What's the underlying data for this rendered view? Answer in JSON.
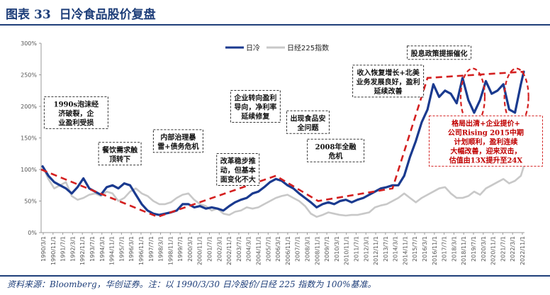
{
  "header": {
    "figure_label": "图表",
    "figure_number": "33",
    "title": "日冷食品股价复盘"
  },
  "source_note": "资料来源：Bloomberg，华创证券。注：以 1990/3/30 日冷股价/日经 225 指数为 100%基准。",
  "colors": {
    "nichirei": "#1a3a8f",
    "nikkei": "#c8c8c8",
    "trend": "#d42020",
    "title": "#1f3f7a"
  },
  "chart_data": {
    "type": "line",
    "ylim": [
      0,
      3
    ],
    "yticks": [
      "0%",
      "50%",
      "100%",
      "150%",
      "200%",
      "250%",
      "300%"
    ],
    "grid": false,
    "legend_position": "top-center",
    "xticks": [
      "1990/3/1",
      "1990/11/1",
      "1991/7/1",
      "1992/3/1",
      "1992/11/1",
      "1993/7/1",
      "1994/3/1",
      "1994/11/1",
      "1995/7/1",
      "1996/3/1",
      "1996/11/1",
      "1997/7/1",
      "1998/3/1",
      "1998/11/1",
      "1999/7/1",
      "2000/3/1",
      "2000/11/1",
      "2001/7/1",
      "2002/3/1",
      "2002/11/1",
      "2003/7/1",
      "2004/3/1",
      "2004/11/1",
      "2005/7/1",
      "2006/3/1",
      "2006/11/1",
      "2007/7/1",
      "2008/3/1",
      "2008/11/1",
      "2009/7/1",
      "2010/3/1",
      "2010/11/1",
      "2011/7/1",
      "2012/3/1",
      "2012/11/1",
      "2013/7/1",
      "2014/3/1",
      "2014/11/1",
      "2015/7/1",
      "2016/3/1",
      "2016/11/1",
      "2017/7/1",
      "2018/3/1",
      "2018/11/1",
      "2019/7/1",
      "2020/3/1",
      "2020/11/1",
      "2021/7/1",
      "2022/3/1",
      "2022/11/1"
    ],
    "series": [
      {
        "name": "日冷",
        "x": [
          1990.2,
          1990.6,
          1991.0,
          1991.4,
          1991.8,
          1992.2,
          1992.6,
          1993.0,
          1993.4,
          1993.8,
          1994.2,
          1994.6,
          1995.0,
          1995.4,
          1995.8,
          1996.2,
          1996.6,
          1997.0,
          1997.4,
          1997.8,
          1998.2,
          1998.6,
          1999.0,
          1999.4,
          1999.8,
          2000.2,
          2000.6,
          2001.0,
          2001.4,
          2001.8,
          2002.2,
          2002.6,
          2003.0,
          2003.4,
          2003.8,
          2004.2,
          2004.6,
          2005.0,
          2005.4,
          2005.8,
          2006.2,
          2006.6,
          2007.0,
          2007.4,
          2007.8,
          2008.2,
          2008.6,
          2009.0,
          2009.4,
          2009.8,
          2010.2,
          2010.6,
          2011.0,
          2011.4,
          2011.8,
          2012.2,
          2012.6,
          2013.0,
          2013.4,
          2013.8,
          2014.2,
          2014.6,
          2015.0,
          2015.4,
          2015.8,
          2016.2,
          2016.6,
          2017.0,
          2017.4,
          2017.8,
          2018.2,
          2018.6,
          2019.0,
          2019.4,
          2019.8,
          2020.2,
          2020.6,
          2021.0,
          2021.4,
          2021.8,
          2022.2,
          2022.6,
          2023.0,
          2023.2
        ],
        "values": [
          1.05,
          0.9,
          0.8,
          0.75,
          0.7,
          0.62,
          0.72,
          0.86,
          0.7,
          0.65,
          0.6,
          0.72,
          0.75,
          0.7,
          0.78,
          0.75,
          0.6,
          0.45,
          0.35,
          0.3,
          0.28,
          0.3,
          0.32,
          0.35,
          0.45,
          0.45,
          0.4,
          0.42,
          0.38,
          0.4,
          0.38,
          0.35,
          0.42,
          0.48,
          0.52,
          0.55,
          0.62,
          0.65,
          0.72,
          0.8,
          0.85,
          0.82,
          0.75,
          0.7,
          0.62,
          0.55,
          0.48,
          0.4,
          0.45,
          0.48,
          0.45,
          0.5,
          0.52,
          0.48,
          0.52,
          0.55,
          0.6,
          0.65,
          0.7,
          0.72,
          0.75,
          0.75,
          0.9,
          1.2,
          1.45,
          1.75,
          1.95,
          2.35,
          2.15,
          2.25,
          2.2,
          2.05,
          2.45,
          2.1,
          1.9,
          2.1,
          2.4,
          2.2,
          2.25,
          2.35,
          1.95,
          1.9,
          2.35,
          2.55
        ]
      },
      {
        "name": "日经225指数",
        "x": [
          1990.2,
          1990.6,
          1991.0,
          1991.4,
          1991.8,
          1992.2,
          1992.6,
          1993.0,
          1993.4,
          1993.8,
          1994.2,
          1994.6,
          1995.0,
          1995.4,
          1995.8,
          1996.2,
          1996.6,
          1997.0,
          1997.4,
          1997.8,
          1998.2,
          1998.6,
          1999.0,
          1999.4,
          1999.8,
          2000.2,
          2000.6,
          2001.0,
          2001.4,
          2001.8,
          2002.2,
          2002.6,
          2003.0,
          2003.4,
          2003.8,
          2004.2,
          2004.6,
          2005.0,
          2005.4,
          2005.8,
          2006.2,
          2006.6,
          2007.0,
          2007.4,
          2007.8,
          2008.2,
          2008.6,
          2009.0,
          2009.4,
          2009.8,
          2010.2,
          2010.6,
          2011.0,
          2011.4,
          2011.8,
          2012.2,
          2012.6,
          2013.0,
          2013.4,
          2013.8,
          2014.2,
          2014.6,
          2015.0,
          2015.4,
          2015.8,
          2016.2,
          2016.6,
          2017.0,
          2017.4,
          2017.8,
          2018.2,
          2018.6,
          2019.0,
          2019.4,
          2019.8,
          2020.2,
          2020.6,
          2021.0,
          2021.4,
          2021.8,
          2022.2,
          2022.6,
          2023.0,
          2023.2
        ],
        "values": [
          1.05,
          0.85,
          0.7,
          0.75,
          0.8,
          0.58,
          0.52,
          0.55,
          0.6,
          0.62,
          0.58,
          0.65,
          0.62,
          0.5,
          0.55,
          0.65,
          0.7,
          0.62,
          0.58,
          0.5,
          0.45,
          0.45,
          0.48,
          0.55,
          0.6,
          0.62,
          0.52,
          0.45,
          0.42,
          0.35,
          0.38,
          0.3,
          0.28,
          0.33,
          0.35,
          0.4,
          0.38,
          0.4,
          0.45,
          0.5,
          0.55,
          0.58,
          0.6,
          0.55,
          0.5,
          0.42,
          0.3,
          0.25,
          0.28,
          0.32,
          0.3,
          0.28,
          0.27,
          0.28,
          0.28,
          0.3,
          0.32,
          0.4,
          0.43,
          0.45,
          0.5,
          0.55,
          0.62,
          0.55,
          0.48,
          0.55,
          0.6,
          0.65,
          0.7,
          0.72,
          0.62,
          0.55,
          0.55,
          0.58,
          0.65,
          0.6,
          0.7,
          0.75,
          0.8,
          0.85,
          0.78,
          0.82,
          0.9,
          1.05
        ]
      }
    ],
    "trend_lines": [
      [
        [
          1990.1,
          1.0
        ],
        [
          1998.1,
          0.25
        ],
        [
          2006.2,
          0.9
        ],
        [
          2009.1,
          0.5
        ],
        [
          2014.2,
          0.7
        ],
        [
          2016.6,
          2.45
        ],
        [
          2023.2,
          2.55
        ]
      ]
    ],
    "highlight_ellipses": [
      {
        "x": 2019.7,
        "y": 2.15
      },
      {
        "x": 2022.7,
        "y": 2.15
      }
    ],
    "annotations": [
      {
        "lines": [
          "1990s泡沫经",
          "济破裂，企",
          "业盈利受损"
        ],
        "x": 1992.5,
        "y": 1.9
      },
      {
        "lines": [
          "餐饮需求触",
          "顶转下"
        ],
        "x": 1995.5,
        "y": 1.25
      },
      {
        "lines": [
          "内部治理暴",
          "雷+债务危机"
        ],
        "x": 1999.5,
        "y": 1.45
      },
      {
        "lines": [
          "改革稳步推",
          "动，但基本",
          "面变化不大"
        ],
        "x": 2003.6,
        "y": 1.0
      },
      {
        "lines": [
          "企业转向盈利",
          "导向，净利率",
          "延续修复"
        ],
        "x": 2004.8,
        "y": 2.0
      },
      {
        "lines": [
          "出现食品安",
          "全问题"
        ],
        "x": 2008.4,
        "y": 1.75
      },
      {
        "lines": [
          "2008年全融",
          "危机"
        ],
        "x": 2010.3,
        "y": 1.3
      },
      {
        "lines": [
          "收入恢复增长+北美",
          "业务发展良好，盈利",
          "延续改善"
        ],
        "x": 2013.9,
        "y": 2.4
      },
      {
        "lines": [
          "股息政策提振催化"
        ],
        "x": 2017.4,
        "y": 2.85
      }
    ],
    "red_annotation": {
      "lines": [
        "格局出清+企业提价+",
        "公司Rising 2015中期",
        "计划顺利，盈利连续",
        "大幅改善，迎来双击，",
        "估值由13X提升至24X"
      ],
      "x": 2020.6,
      "y": 1.45
    }
  }
}
